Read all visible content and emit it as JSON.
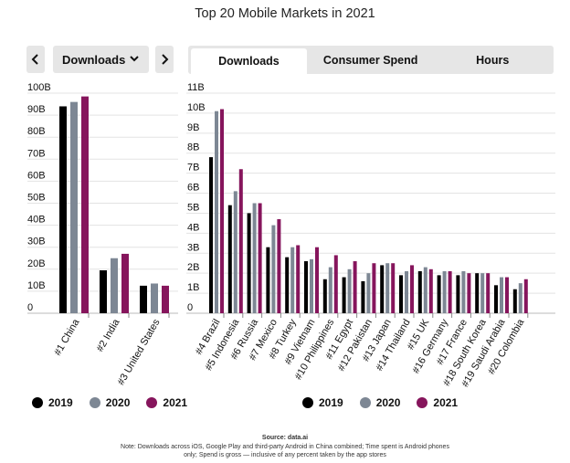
{
  "title": "Top 20 Mobile Markets in 2021",
  "controls": {
    "prev": "‹",
    "next": "›",
    "dropdown_label": "Downloads",
    "dropdown_icon": "chevron-down-icon"
  },
  "tabs": [
    {
      "label": "Downloads",
      "active": true
    },
    {
      "label": "Consumer Spend",
      "active": false
    },
    {
      "label": "Hours",
      "active": false
    }
  ],
  "colors": {
    "2019": "#000000",
    "2020": "#7d8794",
    "2021": "#86155c"
  },
  "legend": [
    {
      "label": "2019",
      "color": "#000000"
    },
    {
      "label": "2020",
      "color": "#7d8794"
    },
    {
      "label": "2021",
      "color": "#86155c"
    }
  ],
  "chart_data": [
    {
      "type": "bar",
      "categories": [
        "#1 China",
        "#2 India",
        "#3 United States"
      ],
      "series": [
        {
          "name": "2019",
          "values": [
            94,
            19.5,
            12.5
          ]
        },
        {
          "name": "2020",
          "values": [
            96,
            25,
            13.5
          ]
        },
        {
          "name": "2021",
          "values": [
            98.5,
            27,
            12.5
          ]
        }
      ],
      "y_tick_labels": [
        "0",
        "10B",
        "20B",
        "30B",
        "40B",
        "50B",
        "60B",
        "70B",
        "80B",
        "90B",
        "100B"
      ],
      "ylim": [
        0,
        100
      ]
    },
    {
      "type": "bar",
      "categories": [
        "#4 Brazil",
        "#5 Indonesia",
        "#6 Russia",
        "#7 Mexico",
        "#8 Turkey",
        "#9 Vietnam",
        "#10 Philippines",
        "#11 Egypt",
        "#12 Pakistan",
        "#13 Japan",
        "#14 Thailand",
        "#15 UK",
        "#16 Germany",
        "#17 France",
        "#18 South Korea",
        "#19 Saudi Arabia",
        "#20 Colombia"
      ],
      "series": [
        {
          "name": "2019",
          "values": [
            7.8,
            5.4,
            5.0,
            3.3,
            2.8,
            2.6,
            1.7,
            1.8,
            1.6,
            2.4,
            1.9,
            2.1,
            1.9,
            1.9,
            2.0,
            1.4,
            1.2
          ]
        },
        {
          "name": "2020",
          "values": [
            10.1,
            6.1,
            5.5,
            4.4,
            3.3,
            2.7,
            2.3,
            2.2,
            2.0,
            2.5,
            2.1,
            2.3,
            2.1,
            2.1,
            2.0,
            1.8,
            1.5
          ]
        },
        {
          "name": "2021",
          "values": [
            10.2,
            7.2,
            5.5,
            4.7,
            3.4,
            3.3,
            2.9,
            2.6,
            2.5,
            2.5,
            2.4,
            2.2,
            2.1,
            2.0,
            2.0,
            1.8,
            1.7
          ]
        }
      ],
      "y_tick_labels": [
        "0",
        "1B",
        "2B",
        "3B",
        "4B",
        "5B",
        "6B",
        "7B",
        "8B",
        "9B",
        "10B",
        "11B"
      ],
      "ylim": [
        0,
        11
      ]
    }
  ],
  "source": "Source: data.ai",
  "note": "Note: Downloads across iOS, Google Play and third-party Android in China combined; Time spent is Android phones only; Spend is gross — inclusive of any percent taken by the app stores"
}
